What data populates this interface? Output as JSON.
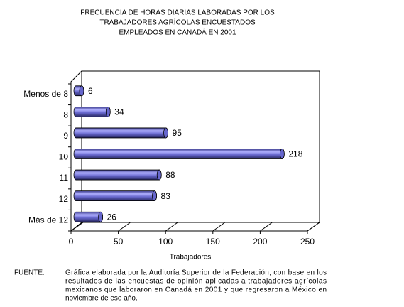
{
  "chart_data": {
    "type": "bar",
    "orientation": "horizontal",
    "title": [
      "FRECUENCIA DE HORAS DIARIAS LABORADAS POR LOS",
      "TRABAJADORES AGRÍCOLAS ENCUESTADOS",
      "EMPLEADOS EN CANADÁ EN 2001"
    ],
    "categories": [
      "Menos de 8",
      "8",
      "9",
      "10",
      "11",
      "12",
      "Más de 12"
    ],
    "values": [
      6,
      34,
      95,
      218,
      88,
      83,
      26
    ],
    "color": "#6666cc",
    "xlabel": "Trabajadores",
    "xlim": [
      0,
      250
    ],
    "xticks": [
      0,
      50,
      100,
      150,
      200,
      250
    ]
  },
  "source": {
    "label": "FUENTE:",
    "lines": [
      "Gráfica elaborada por la Auditoría Superior de la Federación, con base en los",
      "resultados de las encuestas de opinión aplicadas a  trabajadores agrícolas",
      "mexicanos que laboraron  en Canadá en 2001 y que regresaron a México en",
      "noviembre de ese año."
    ]
  }
}
